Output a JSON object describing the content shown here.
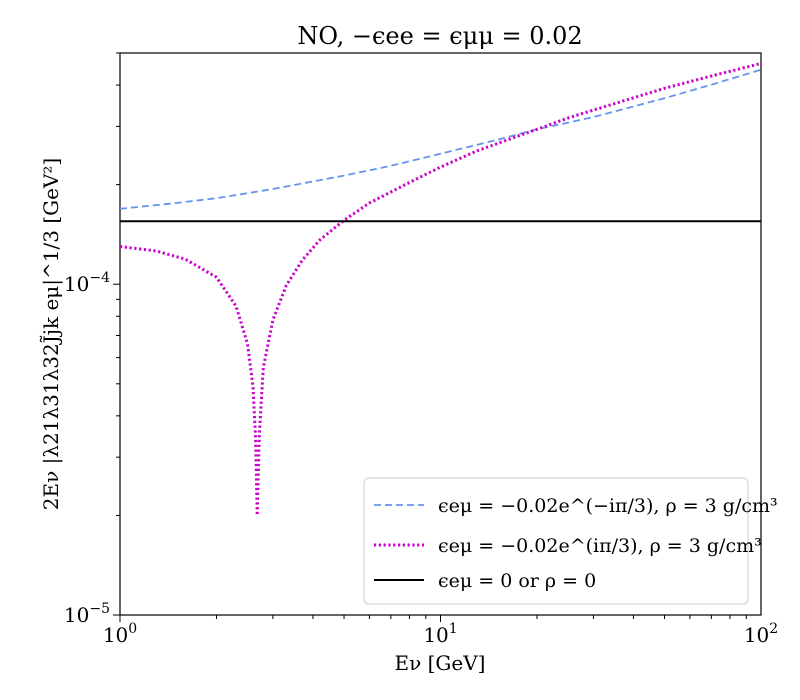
{
  "chart_data": {
    "type": "line",
    "title": "NO, −ϵee = ϵμμ = 0.02",
    "xlabel": "Eν [GeV]",
    "ylabel": "2Eν |λ21λ31λ32J̃jk eμ|^1/3 [GeV²]",
    "xscale": "log",
    "yscale": "log",
    "xlim": [
      1,
      100
    ],
    "ylim": [
      1e-05,
      0.0005
    ],
    "xticks": [
      "10^0",
      "10^1",
      "10^2"
    ],
    "yticks": [
      "10^-5",
      "10^-4"
    ],
    "legend_position": "lower-right",
    "series": [
      {
        "name": "ϵeμ = −0.02e^(−iπ/3), ρ = 3 g/cm³",
        "color": "#6495ed",
        "style": "dashed",
        "x": [
          1,
          1.5,
          2,
          3,
          5,
          7,
          10,
          15,
          20,
          30,
          50,
          70,
          100
        ],
        "y": [
          0.000169,
          0.000176,
          0.000182,
          0.000194,
          0.000213,
          0.000228,
          0.000248,
          0.000273,
          0.000294,
          0.00032,
          0.000365,
          0.000401,
          0.000445
        ]
      },
      {
        "name": "ϵeμ = −0.02e^(iπ/3), ρ = 3 g/cm³",
        "color": "#cc00cc",
        "style": "dotted",
        "x": [
          1,
          1.3,
          1.6,
          2.0,
          2.3,
          2.5,
          2.6,
          2.65,
          2.68,
          2.72,
          2.8,
          3.0,
          3.3,
          3.7,
          4.2,
          5,
          6,
          7,
          8,
          10,
          13,
          16,
          20,
          25,
          30,
          40,
          50,
          70,
          100
        ],
        "y": [
          0.00013,
          0.000126,
          0.000119,
          0.000105,
          8.6e-05,
          6.6e-05,
          4.9e-05,
          3.4e-05,
          2e-05,
          3.5e-05,
          5.6e-05,
          7.8e-05,
          9.9e-05,
          0.000118,
          0.000136,
          0.000156,
          0.000176,
          0.00019,
          0.000203,
          0.000226,
          0.000253,
          0.000272,
          0.000294,
          0.000318,
          0.000336,
          0.000366,
          0.000391,
          0.000426,
          0.000465
        ]
      },
      {
        "name": "ϵeμ = 0 or ρ = 0",
        "color": "#000000",
        "style": "solid",
        "x": [
          1,
          100
        ],
        "y": [
          0.000155,
          0.000155
        ]
      }
    ]
  }
}
